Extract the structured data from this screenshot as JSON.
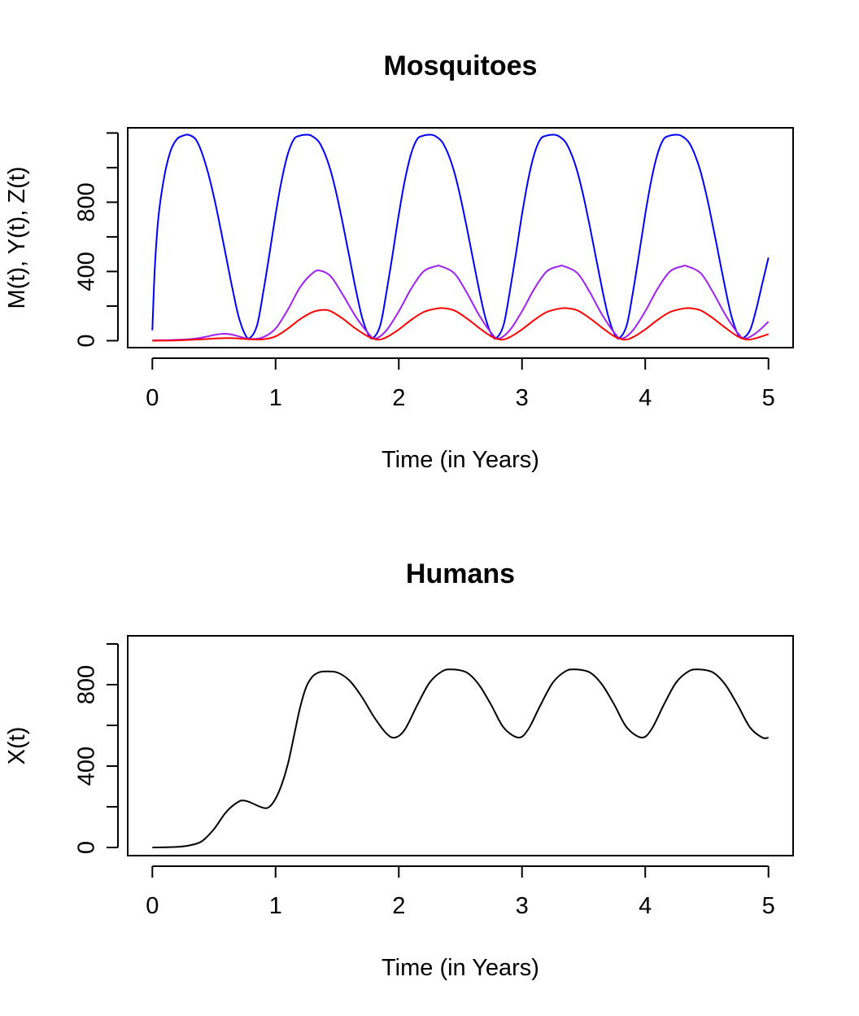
{
  "chart_data": [
    {
      "type": "line",
      "title": "Mosquitoes",
      "xlabel": "Time (in Years)",
      "ylabel": "M(t), Y(t), Z(t)",
      "xlim": [
        -0.2,
        5.2
      ],
      "ylim": [
        -40,
        1230
      ],
      "xticks": [
        0,
        1,
        2,
        3,
        4,
        5
      ],
      "xtick_labels": [
        "0",
        "1",
        "2",
        "3",
        "4",
        "5"
      ],
      "yticks": [
        0,
        200,
        400,
        600,
        800,
        1000,
        1200
      ],
      "ytick_labels": [
        "0",
        "",
        "400",
        "",
        "800",
        "",
        ""
      ],
      "grid": false,
      "series": [
        {
          "color": "#0000ff",
          "x": [
            0,
            0.02,
            0.05,
            0.1,
            0.15,
            0.2,
            0.25,
            0.29,
            0.35,
            0.4,
            0.45,
            0.5,
            0.55,
            0.6,
            0.65,
            0.7,
            0.75,
            0.79,
            0.85,
            0.9,
            0.95,
            1.0,
            1.05,
            1.1,
            1.15,
            1.2,
            1.25,
            1.29,
            1.35,
            1.4,
            1.45,
            1.5,
            1.55,
            1.6,
            1.65,
            1.7,
            1.75,
            1.79,
            1.85,
            1.9,
            1.95,
            2.0,
            2.05,
            2.1,
            2.15,
            2.2,
            2.25,
            2.29,
            2.35,
            2.4,
            2.45,
            2.5,
            2.55,
            2.6,
            2.65,
            2.7,
            2.75,
            2.79,
            2.85,
            2.9,
            2.95,
            3.0,
            3.05,
            3.1,
            3.15,
            3.2,
            3.25,
            3.29,
            3.35,
            3.4,
            3.45,
            3.5,
            3.55,
            3.6,
            3.65,
            3.7,
            3.75,
            3.79,
            3.85,
            3.9,
            3.95,
            4.0,
            4.05,
            4.1,
            4.15,
            4.2,
            4.25,
            4.29,
            4.35,
            4.4,
            4.45,
            4.5,
            4.55,
            4.6,
            4.65,
            4.7,
            4.75,
            4.79,
            4.85,
            4.9,
            4.95,
            5.0
          ],
          "y": [
            60,
            420,
            720,
            960,
            1100,
            1165,
            1185,
            1190,
            1165,
            1090,
            975,
            830,
            660,
            480,
            300,
            140,
            40,
            15,
            90,
            280,
            500,
            730,
            930,
            1080,
            1165,
            1185,
            1190,
            1185,
            1150,
            1080,
            975,
            830,
            660,
            480,
            300,
            140,
            40,
            15,
            90,
            280,
            500,
            730,
            930,
            1080,
            1165,
            1185,
            1190,
            1185,
            1150,
            1080,
            975,
            830,
            660,
            480,
            300,
            140,
            40,
            15,
            90,
            280,
            500,
            730,
            930,
            1080,
            1165,
            1185,
            1190,
            1185,
            1150,
            1080,
            975,
            830,
            660,
            480,
            300,
            140,
            40,
            15,
            90,
            280,
            500,
            730,
            930,
            1080,
            1165,
            1185,
            1190,
            1185,
            1150,
            1080,
            975,
            830,
            660,
            480,
            300,
            140,
            40,
            15,
            60,
            180,
            330,
            480
          ]
        },
        {
          "color": "#a020f0",
          "x": [
            0,
            0.2,
            0.35,
            0.45,
            0.5,
            0.58,
            0.65,
            0.7,
            0.8,
            0.9,
            1.0,
            1.1,
            1.2,
            1.3,
            1.36,
            1.45,
            1.55,
            1.65,
            1.75,
            1.81,
            1.9,
            2.0,
            2.1,
            2.2,
            2.3,
            2.34,
            2.45,
            2.55,
            2.65,
            2.75,
            2.81,
            2.9,
            3.0,
            3.1,
            3.2,
            3.3,
            3.34,
            3.45,
            3.55,
            3.65,
            3.75,
            3.81,
            3.9,
            4.0,
            4.1,
            4.2,
            4.3,
            4.34,
            4.45,
            4.55,
            4.65,
            4.75,
            4.81,
            4.9,
            5.0
          ],
          "y": [
            2,
            5,
            12,
            25,
            33,
            40,
            35,
            25,
            10,
            20,
            70,
            180,
            310,
            390,
            405,
            370,
            260,
            140,
            45,
            12,
            60,
            170,
            300,
            400,
            430,
            430,
            390,
            280,
            150,
            45,
            12,
            60,
            170,
            300,
            400,
            430,
            430,
            390,
            280,
            150,
            45,
            12,
            60,
            170,
            300,
            400,
            430,
            430,
            390,
            280,
            150,
            45,
            12,
            45,
            110
          ]
        },
        {
          "color": "#ff0000",
          "x": [
            0,
            0.2,
            0.4,
            0.5,
            0.6,
            0.7,
            0.8,
            0.9,
            1.0,
            1.1,
            1.2,
            1.3,
            1.38,
            1.45,
            1.55,
            1.65,
            1.75,
            1.83,
            1.9,
            2.0,
            2.1,
            2.2,
            2.3,
            2.36,
            2.45,
            2.55,
            2.65,
            2.75,
            2.83,
            2.9,
            3.0,
            3.1,
            3.2,
            3.3,
            3.36,
            3.45,
            3.55,
            3.65,
            3.75,
            3.83,
            3.9,
            4.0,
            4.1,
            4.2,
            4.3,
            4.36,
            4.45,
            4.55,
            4.65,
            4.75,
            4.83,
            4.9,
            5.0
          ],
          "y": [
            0,
            2,
            8,
            12,
            15,
            13,
            8,
            8,
            25,
            70,
            125,
            165,
            178,
            170,
            125,
            70,
            25,
            6,
            20,
            65,
            120,
            165,
            185,
            188,
            175,
            130,
            75,
            25,
            6,
            20,
            65,
            120,
            165,
            185,
            188,
            175,
            130,
            75,
            25,
            6,
            20,
            65,
            120,
            165,
            185,
            188,
            175,
            130,
            75,
            25,
            6,
            15,
            38
          ]
        }
      ]
    },
    {
      "type": "line",
      "title": "Humans",
      "xlabel": "Time (in Years)",
      "ylabel": "X(t)",
      "xlim": [
        -0.2,
        5.2
      ],
      "ylim": [
        -40,
        1040
      ],
      "xticks": [
        0,
        1,
        2,
        3,
        4,
        5
      ],
      "xtick_labels": [
        "0",
        "1",
        "2",
        "3",
        "4",
        "5"
      ],
      "yticks": [
        0,
        200,
        400,
        600,
        800,
        1000
      ],
      "ytick_labels": [
        "0",
        "",
        "400",
        "",
        "800",
        ""
      ],
      "grid": false,
      "series": [
        {
          "color": "#000000",
          "x": [
            0,
            0.1,
            0.2,
            0.3,
            0.4,
            0.5,
            0.6,
            0.7,
            0.75,
            0.8,
            0.9,
            0.95,
            1.0,
            1.05,
            1.1,
            1.15,
            1.2,
            1.25,
            1.3,
            1.35,
            1.4,
            1.5,
            1.6,
            1.7,
            1.8,
            1.9,
            1.97,
            2.05,
            2.15,
            2.25,
            2.35,
            2.43,
            2.55,
            2.65,
            2.75,
            2.85,
            2.97,
            3.05,
            3.15,
            3.25,
            3.35,
            3.43,
            3.55,
            3.65,
            3.75,
            3.85,
            3.97,
            4.05,
            4.15,
            4.25,
            4.35,
            4.43,
            4.55,
            4.65,
            4.75,
            4.85,
            4.95,
            5.0
          ],
          "y": [
            0,
            1,
            3,
            10,
            30,
            90,
            175,
            225,
            230,
            220,
            195,
            200,
            240,
            310,
            410,
            550,
            690,
            790,
            840,
            860,
            865,
            860,
            820,
            740,
            640,
            560,
            540,
            580,
            700,
            810,
            865,
            875,
            860,
            800,
            700,
            590,
            540,
            580,
            700,
            810,
            865,
            875,
            860,
            800,
            700,
            590,
            540,
            580,
            700,
            810,
            865,
            875,
            860,
            800,
            700,
            590,
            540,
            540
          ]
        }
      ]
    }
  ]
}
